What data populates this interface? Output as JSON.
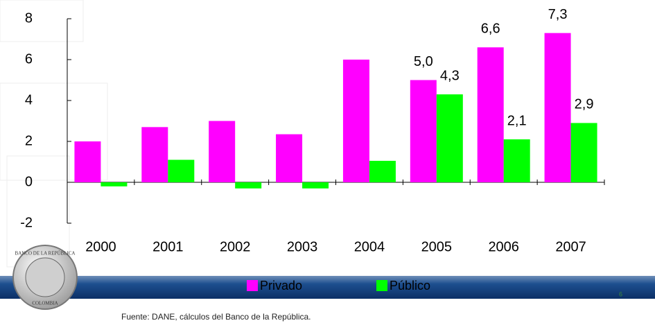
{
  "chart_data": {
    "type": "bar",
    "categories": [
      "2000",
      "2001",
      "2002",
      "2003",
      "2004",
      "2005",
      "2006",
      "2007"
    ],
    "series": [
      {
        "name": "Privado",
        "color": "#ff00ff",
        "values": [
          2.0,
          2.7,
          3.0,
          2.35,
          6.0,
          5.0,
          6.6,
          7.3
        ],
        "value_labels": [
          null,
          null,
          null,
          null,
          null,
          "5,0",
          "6,6",
          "7,3"
        ]
      },
      {
        "name": "Público",
        "color": "#00ff00",
        "values": [
          -0.2,
          1.1,
          -0.3,
          -0.3,
          1.05,
          4.3,
          2.1,
          2.9
        ],
        "value_labels": [
          null,
          null,
          null,
          null,
          null,
          "4,3",
          "2,1",
          "2,9"
        ]
      }
    ],
    "ylim": [
      -2,
      8
    ],
    "yticks": [
      -2,
      0,
      2,
      4,
      6,
      8
    ],
    "grid": false,
    "legend": "bottom"
  },
  "source": "Fuente: DANE, cálculos del Banco de la República.",
  "logo": {
    "top": "BANCO DE LA REPÚBLICA",
    "bottom": "COLOMBIA"
  },
  "page_number": "6"
}
